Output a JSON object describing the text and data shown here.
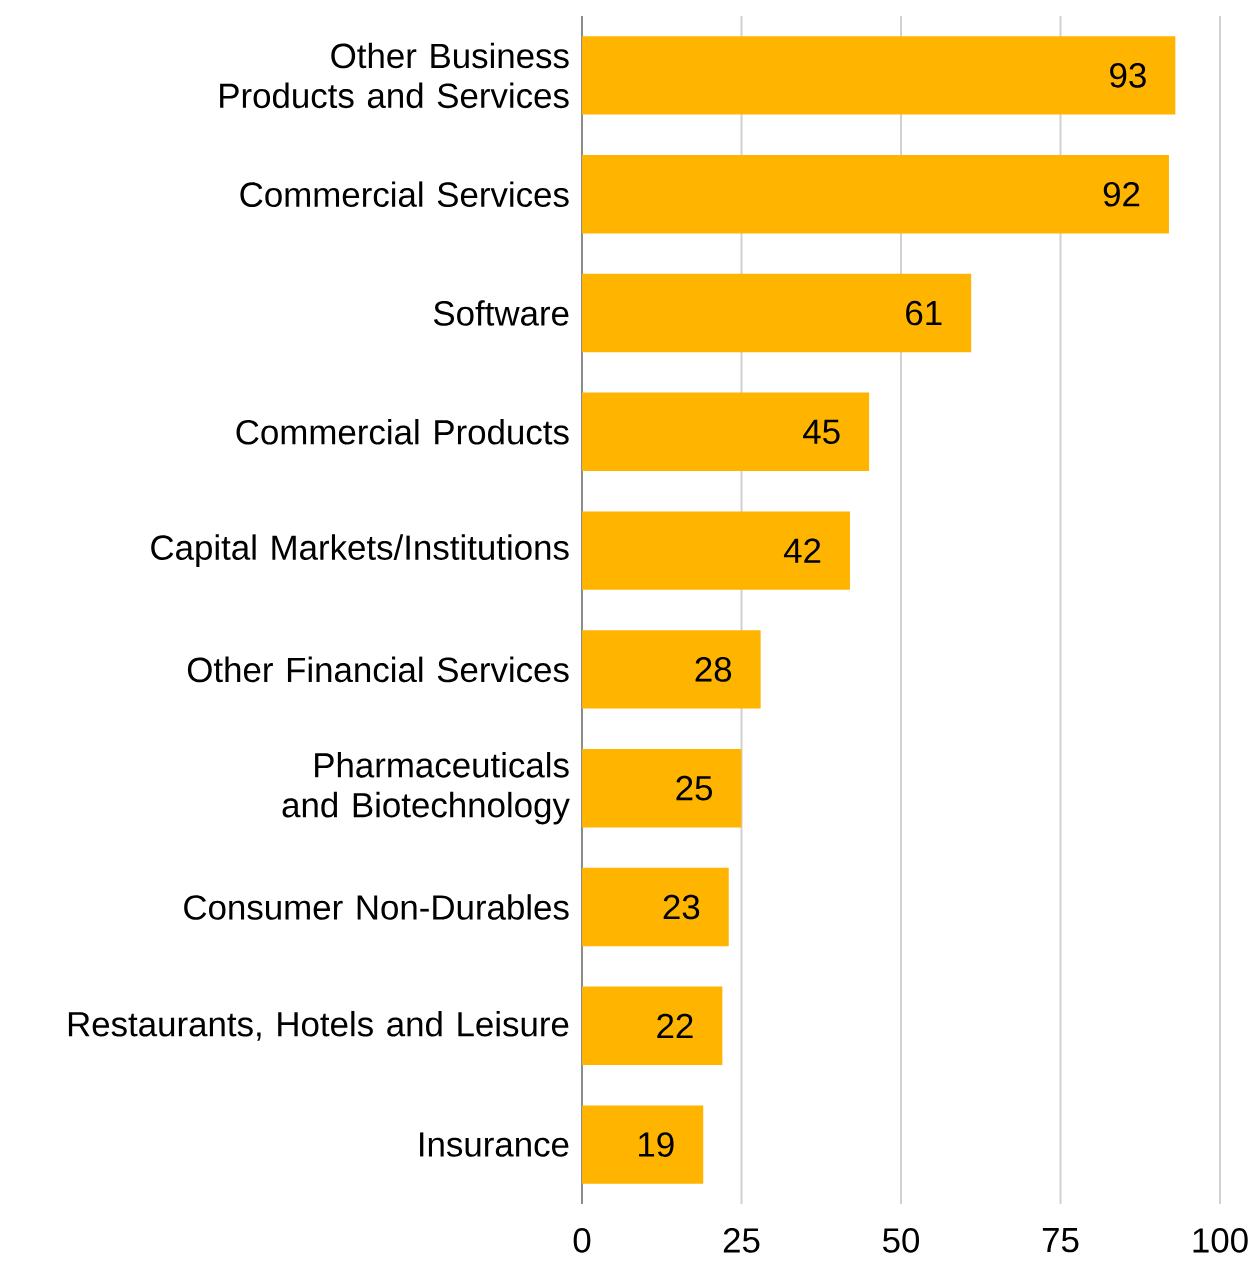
{
  "chart_data": {
    "type": "bar",
    "orientation": "horizontal",
    "categories": [
      "Other Business Products and Services",
      "Commercial Services",
      "Software",
      "Commercial Products",
      "Capital Markets/Institutions",
      "Other Financial Services",
      "Pharmaceuticals and Biotechnology",
      "Consumer Non-Durables",
      "Restaurants, Hotels and Leisure",
      "Insurance"
    ],
    "values": [
      93,
      92,
      61,
      45,
      42,
      28,
      25,
      23,
      22,
      19
    ],
    "color": "#ffb400",
    "xlim": [
      0,
      100
    ],
    "xticks": [
      0,
      25,
      50,
      75,
      100
    ],
    "grid": "x",
    "data_labels": true
  }
}
